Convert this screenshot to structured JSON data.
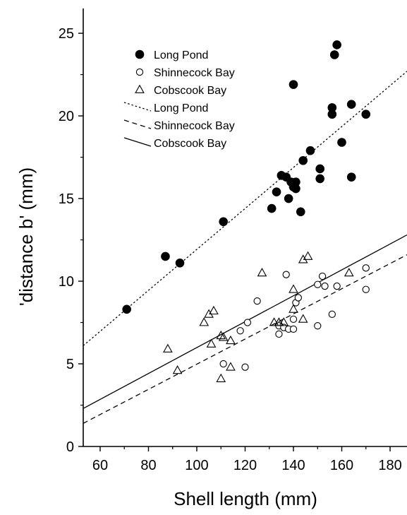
{
  "chart_data": {
    "type": "scatter",
    "xlabel": "Shell length (mm)",
    "ylabel": "'distance b' (mm)",
    "xlim": [
      53,
      187
    ],
    "ylim": [
      0,
      26.5
    ],
    "x_ticks": [
      60,
      80,
      100,
      120,
      140,
      160,
      180
    ],
    "y_ticks": [
      0,
      5,
      10,
      15,
      20,
      25
    ],
    "grid": false,
    "legend_position": "top-left (inside plot)",
    "series": [
      {
        "name": "Long Pond",
        "marker": "filled-circle",
        "color": "#000000",
        "points": [
          [
            71,
            8.3
          ],
          [
            87,
            11.5
          ],
          [
            93,
            11.1
          ],
          [
            111,
            13.6
          ],
          [
            131,
            14.4
          ],
          [
            133,
            15.4
          ],
          [
            135,
            16.4
          ],
          [
            137,
            16.3
          ],
          [
            138,
            15.0
          ],
          [
            139,
            16.0
          ],
          [
            140,
            15.7
          ],
          [
            141,
            15.6
          ],
          [
            141,
            16.0
          ],
          [
            143,
            14.2
          ],
          [
            144,
            17.3
          ],
          [
            147,
            17.9
          ],
          [
            151,
            16.8
          ],
          [
            151,
            16.2
          ],
          [
            156,
            20.5
          ],
          [
            156,
            20.1
          ],
          [
            157,
            23.7
          ],
          [
            158,
            24.3
          ],
          [
            160,
            18.4
          ],
          [
            164,
            20.7
          ],
          [
            164,
            16.3
          ],
          [
            170,
            20.1
          ],
          [
            140,
            21.9
          ]
        ]
      },
      {
        "name": "Shinnecock Bay",
        "marker": "open-circle",
        "color": "#000000",
        "points": [
          [
            111,
            5.0
          ],
          [
            118,
            7.0
          ],
          [
            120,
            4.8
          ],
          [
            121,
            7.5
          ],
          [
            125,
            8.8
          ],
          [
            134,
            7.3
          ],
          [
            134,
            6.8
          ],
          [
            136,
            7.2
          ],
          [
            137,
            10.4
          ],
          [
            138,
            7.1
          ],
          [
            140,
            7.7
          ],
          [
            140,
            7.1
          ],
          [
            141,
            8.7
          ],
          [
            142,
            9.0
          ],
          [
            150,
            7.3
          ],
          [
            150,
            9.8
          ],
          [
            152,
            10.3
          ],
          [
            153,
            9.7
          ],
          [
            156,
            8.0
          ],
          [
            158,
            9.7
          ],
          [
            170,
            10.8
          ],
          [
            170,
            9.5
          ]
        ]
      },
      {
        "name": "Cobscook Bay",
        "marker": "open-triangle",
        "color": "#000000",
        "points": [
          [
            88,
            5.9
          ],
          [
            92,
            4.6
          ],
          [
            103,
            7.5
          ],
          [
            105,
            8.0
          ],
          [
            106,
            6.2
          ],
          [
            107,
            8.2
          ],
          [
            110,
            6.7
          ],
          [
            110,
            4.1
          ],
          [
            111,
            6.6
          ],
          [
            114,
            4.8
          ],
          [
            114,
            6.4
          ],
          [
            127,
            10.5
          ],
          [
            132,
            7.5
          ],
          [
            134,
            7.5
          ],
          [
            136,
            7.5
          ],
          [
            140,
            9.5
          ],
          [
            140,
            8.3
          ],
          [
            144,
            7.7
          ],
          [
            144,
            11.3
          ],
          [
            146,
            11.5
          ],
          [
            163,
            10.5
          ]
        ]
      }
    ],
    "regression_lines": [
      {
        "name": "Long Pond",
        "style": "dotted",
        "x": [
          53,
          187
        ],
        "y": [
          6.1,
          22.7
        ]
      },
      {
        "name": "Shinnecock Bay",
        "style": "dashed",
        "x": [
          53,
          187
        ],
        "y": [
          1.4,
          11.6
        ]
      },
      {
        "name": "Cobscook Bay",
        "style": "solid",
        "x": [
          53,
          187
        ],
        "y": [
          2.3,
          12.8
        ]
      }
    ]
  }
}
